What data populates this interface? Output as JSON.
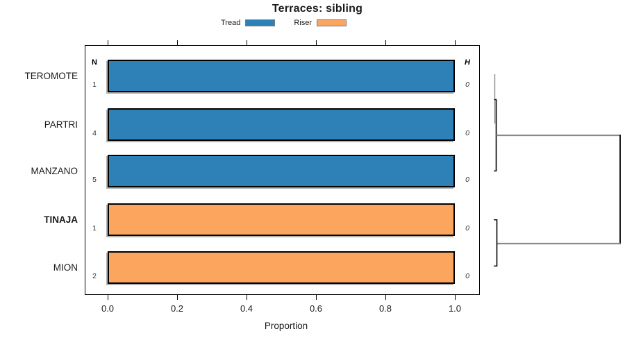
{
  "chart_data": {
    "type": "bar",
    "orientation": "horizontal",
    "title": "Terraces: sibling",
    "xlabel": "Proportion",
    "xlim": [
      0.0,
      1.0
    ],
    "xtick_labels": [
      "0.0",
      "0.2",
      "0.4",
      "0.6",
      "0.8",
      "1.0"
    ],
    "legend_position": "top",
    "legend": [
      {
        "label": "Tread",
        "color": "#2e81b6"
      },
      {
        "label": "Riser",
        "color": "#fba55f"
      }
    ],
    "columns": {
      "n_header": "N",
      "h_header": "H"
    },
    "rows": [
      {
        "label": "TEROMOTE",
        "n": "1",
        "h": "0",
        "series": "Tread",
        "value": 1.0
      },
      {
        "label": "PARTRI",
        "n": "4",
        "h": "0",
        "series": "Tread",
        "value": 1.0
      },
      {
        "label": "MANZANO",
        "n": "5",
        "h": "0",
        "series": "Tread",
        "value": 1.0
      },
      {
        "label": "TINAJA",
        "n": "1",
        "h": "0",
        "series": "Riser",
        "value": 1.0
      },
      {
        "label": "MION",
        "n": "2",
        "h": "0",
        "series": "Riser",
        "value": 1.0
      }
    ],
    "dendrogram": {
      "position": "right",
      "merges": [
        {
          "members": [
            "TEROMOTE",
            "PARTRI"
          ],
          "height": 0
        },
        {
          "members": [
            "TEROMOTE+PARTRI",
            "MANZANO"
          ],
          "height": 0
        },
        {
          "members": [
            "TINAJA",
            "MION"
          ],
          "height": 0
        },
        {
          "members": [
            "TEROMOTE+PARTRI+MANZANO",
            "TINAJA+MION"
          ],
          "height": "max"
        }
      ],
      "line_colors": {
        "connectors": "#8a8a8a",
        "brackets": "#000000"
      }
    }
  }
}
